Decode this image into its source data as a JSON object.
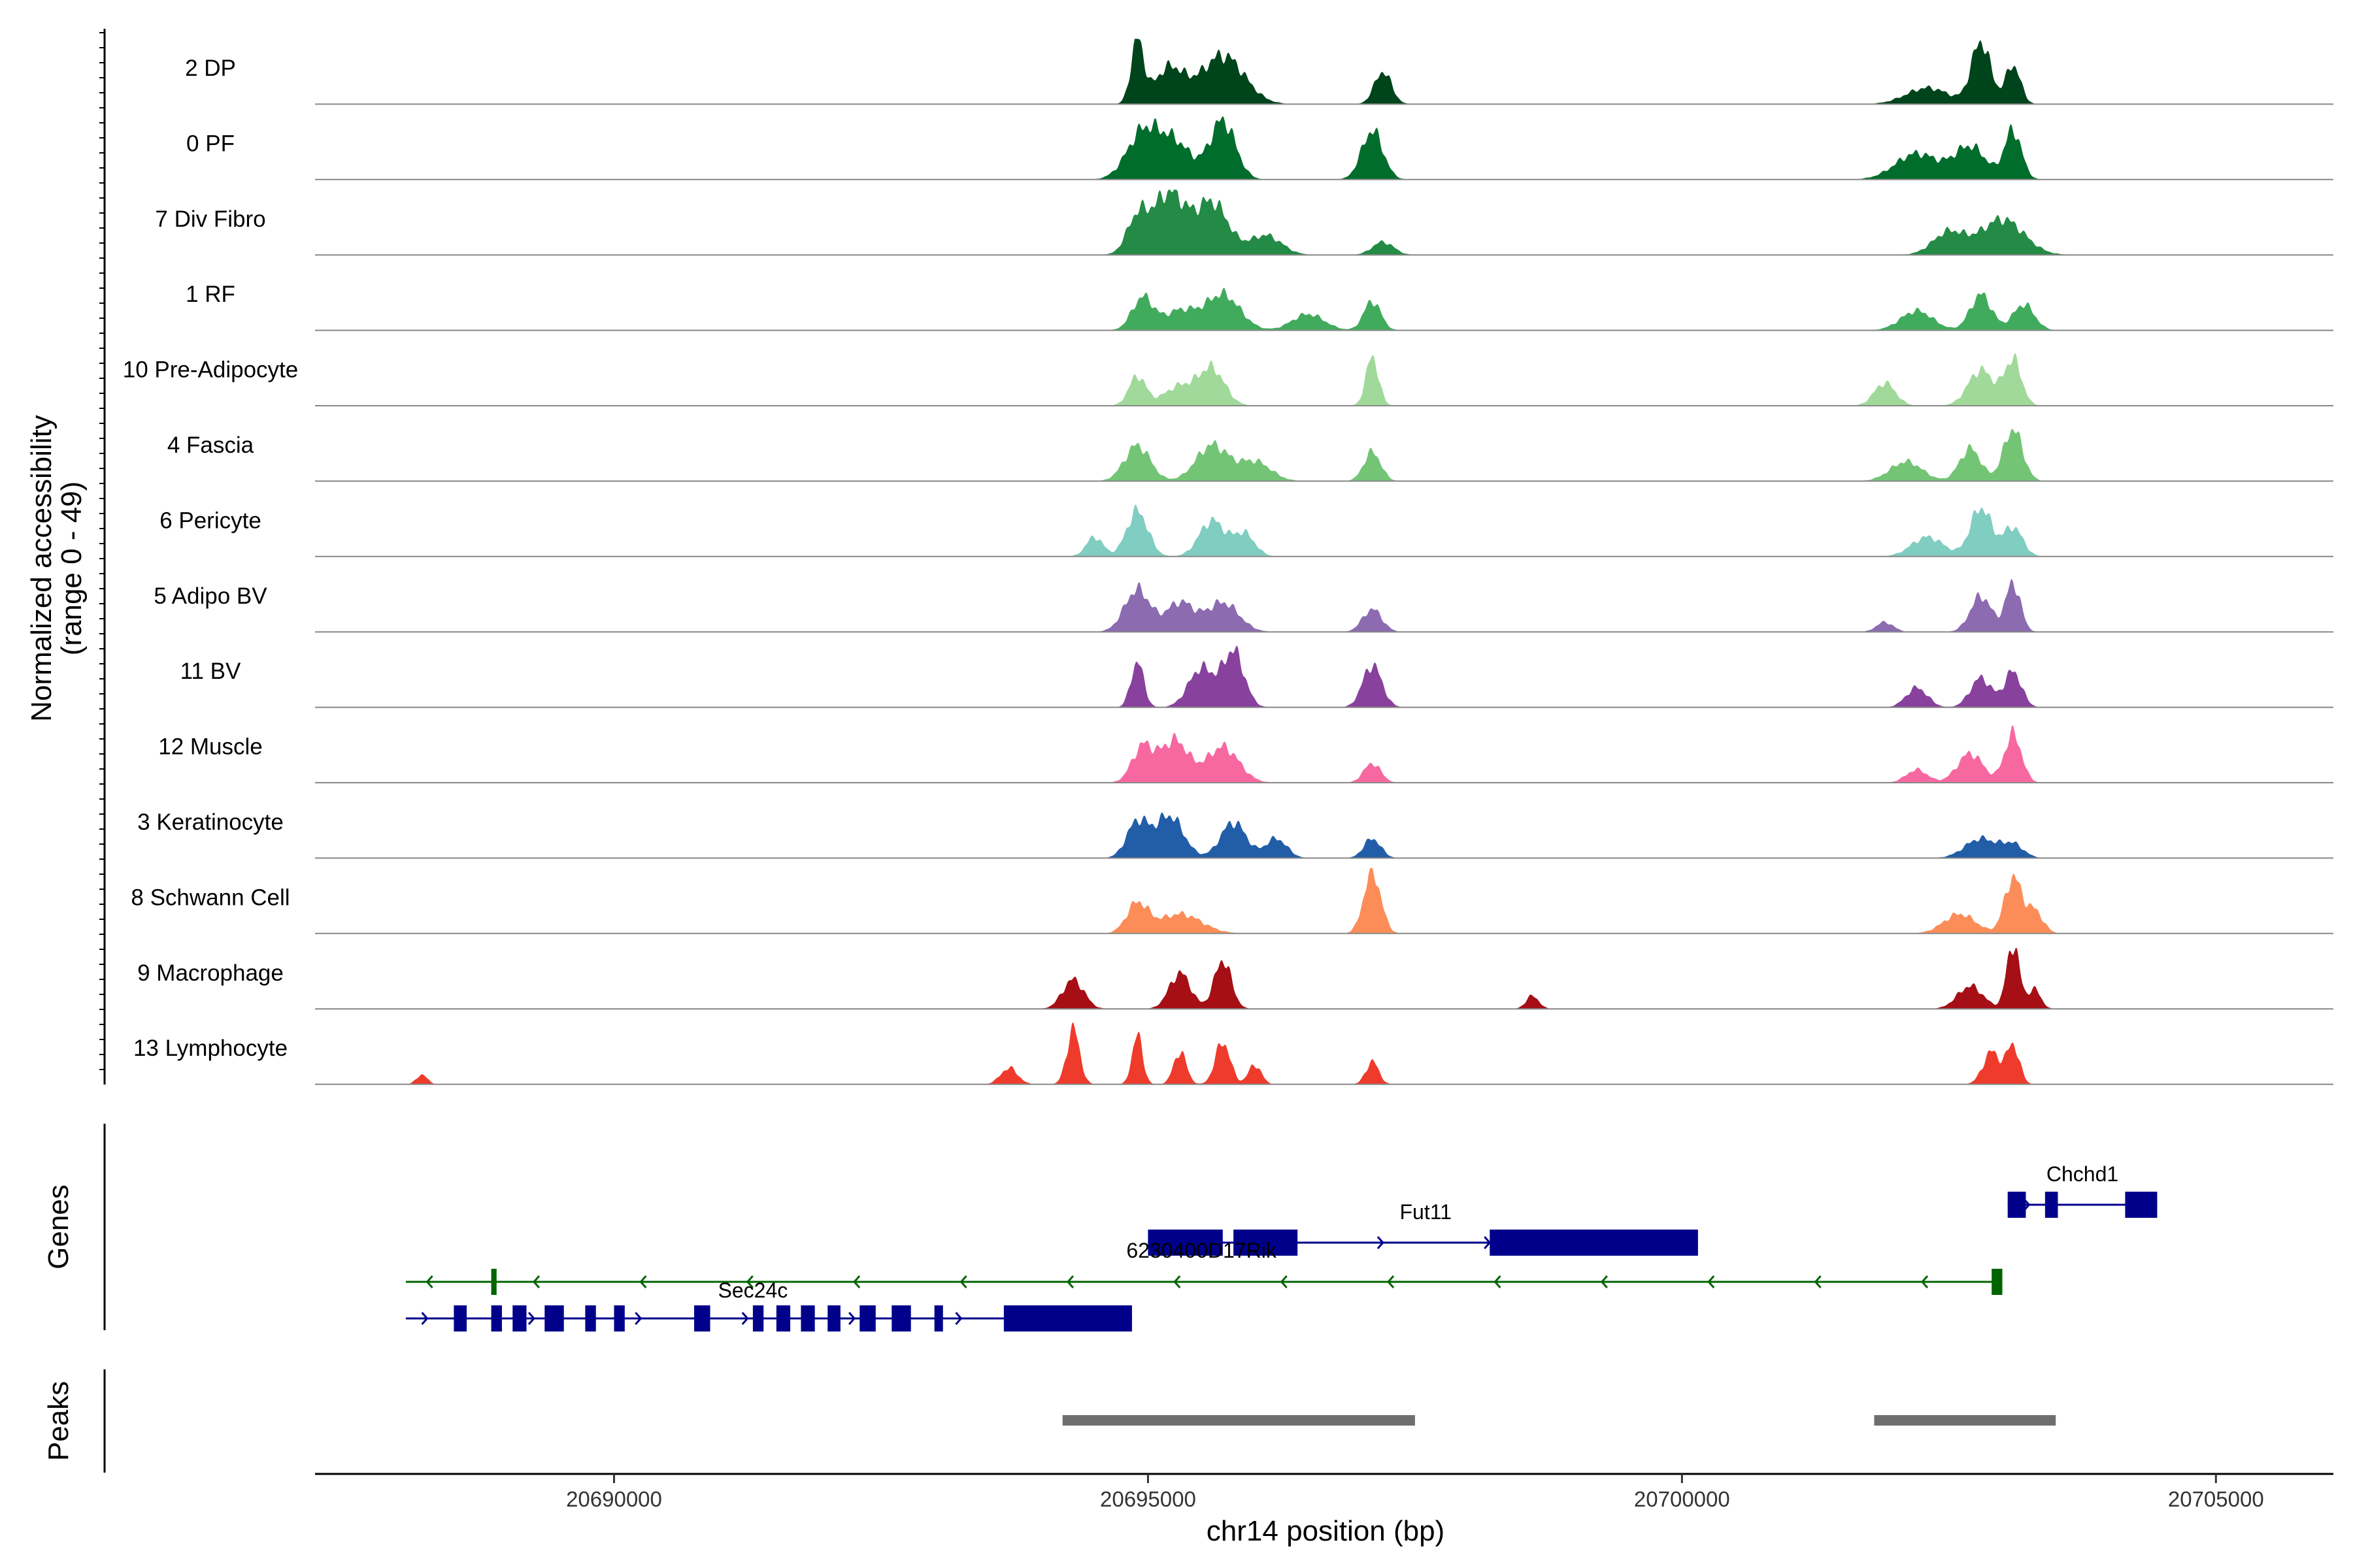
{
  "chart_data": {
    "type": "area",
    "title": "",
    "ylabel": "Normalized accessibility",
    "ylabel_range": "(range 0 - 49)",
    "xlabel": "chr14 position (bp)",
    "xlim": [
      20687200,
      20706100
    ],
    "ylim": [
      0,
      49
    ],
    "x_ticks": [
      {
        "value": 20690000,
        "label": "20690000"
      },
      {
        "value": 20695000,
        "label": "20695000"
      },
      {
        "value": 20700000,
        "label": "20700000"
      },
      {
        "value": 20705000,
        "label": "20705000"
      }
    ],
    "tracks": [
      {
        "name": "2 DP",
        "color": "#00441b",
        "base": 1.0,
        "peaks": [
          [
            20694900,
            0.95,
            60
          ],
          [
            20695200,
            0.55,
            140
          ],
          [
            20695700,
            0.75,
            200
          ],
          [
            20697200,
            0.5,
            80
          ],
          [
            20702800,
            0.95,
            90
          ],
          [
            20703100,
            0.6,
            70
          ],
          [
            20702300,
            0.25,
            200
          ]
        ]
      },
      {
        "name": "0 PF",
        "color": "#006d2c",
        "base": 1.0,
        "peaks": [
          [
            20694950,
            0.7,
            150
          ],
          [
            20695250,
            0.55,
            160
          ],
          [
            20695700,
            0.9,
            120
          ],
          [
            20697100,
            0.75,
            100
          ],
          [
            20702200,
            0.4,
            200
          ],
          [
            20702700,
            0.5,
            150
          ],
          [
            20703100,
            0.75,
            80
          ]
        ]
      },
      {
        "name": "7 Div Fibro",
        "color": "#238b45",
        "base": 1.0,
        "peaks": [
          [
            20694900,
            0.55,
            100
          ],
          [
            20695200,
            0.95,
            150
          ],
          [
            20695600,
            0.8,
            150
          ],
          [
            20696100,
            0.3,
            150
          ],
          [
            20697200,
            0.2,
            100
          ],
          [
            20702500,
            0.35,
            150
          ],
          [
            20703000,
            0.55,
            200
          ]
        ]
      },
      {
        "name": "1 RF",
        "color": "#41ab5d",
        "base": 1.0,
        "peaks": [
          [
            20694950,
            0.5,
            100
          ],
          [
            20695300,
            0.3,
            150
          ],
          [
            20695700,
            0.55,
            160
          ],
          [
            20696500,
            0.25,
            150
          ],
          [
            20697100,
            0.45,
            80
          ],
          [
            20702200,
            0.3,
            150
          ],
          [
            20702800,
            0.55,
            100
          ],
          [
            20703200,
            0.4,
            100
          ]
        ]
      },
      {
        "name": "10 Pre-Adipocyte",
        "color": "#a1d99b",
        "base": 1.0,
        "peaks": [
          [
            20694900,
            0.45,
            80
          ],
          [
            20695600,
            0.55,
            120
          ],
          [
            20697100,
            0.75,
            60
          ],
          [
            20701900,
            0.35,
            100
          ],
          [
            20702800,
            0.55,
            120
          ],
          [
            20703100,
            0.7,
            80
          ],
          [
            20695300,
            0.3,
            150
          ]
        ]
      },
      {
        "name": "4 Fascia",
        "color": "#74c476",
        "base": 1.0,
        "peaks": [
          [
            20694900,
            0.55,
            120
          ],
          [
            20695600,
            0.55,
            150
          ],
          [
            20697100,
            0.45,
            80
          ],
          [
            20702100,
            0.3,
            150
          ],
          [
            20702700,
            0.5,
            100
          ],
          [
            20703100,
            0.8,
            90
          ],
          [
            20696000,
            0.3,
            150
          ]
        ]
      },
      {
        "name": "6 Pericyte",
        "color": "#80cdc1",
        "base": 1.0,
        "peaks": [
          [
            20694500,
            0.3,
            80
          ],
          [
            20694900,
            0.7,
            100
          ],
          [
            20695600,
            0.55,
            120
          ],
          [
            20695900,
            0.35,
            100
          ],
          [
            20702800,
            0.75,
            100
          ],
          [
            20702300,
            0.3,
            150
          ],
          [
            20703100,
            0.45,
            90
          ]
        ]
      },
      {
        "name": "5 Adipo BV",
        "color": "#8c6bb1",
        "base": 1.0,
        "peaks": [
          [
            20694900,
            0.65,
            120
          ],
          [
            20695300,
            0.45,
            130
          ],
          [
            20695700,
            0.45,
            150
          ],
          [
            20697100,
            0.35,
            90
          ],
          [
            20702800,
            0.55,
            100
          ],
          [
            20703100,
            0.75,
            70
          ],
          [
            20701900,
            0.15,
            80
          ]
        ]
      },
      {
        "name": "11 BV",
        "color": "#88419d",
        "base": 1.0,
        "peaks": [
          [
            20694900,
            0.7,
            60
          ],
          [
            20695500,
            0.6,
            120
          ],
          [
            20695800,
            0.85,
            100
          ],
          [
            20697100,
            0.65,
            90
          ],
          [
            20702800,
            0.45,
            100
          ],
          [
            20703100,
            0.55,
            80
          ],
          [
            20702200,
            0.3,
            100
          ]
        ]
      },
      {
        "name": "12 Muscle",
        "color": "#f768a1",
        "base": 1.0,
        "peaks": [
          [
            20694950,
            0.55,
            100
          ],
          [
            20695250,
            0.65,
            130
          ],
          [
            20695700,
            0.55,
            150
          ],
          [
            20697100,
            0.3,
            80
          ],
          [
            20702700,
            0.45,
            120
          ],
          [
            20703100,
            0.75,
            80
          ],
          [
            20702200,
            0.2,
            100
          ]
        ]
      },
      {
        "name": "3 Keratinocyte",
        "color": "#225ea8",
        "base": 1.0,
        "peaks": [
          [
            20694900,
            0.55,
            100
          ],
          [
            20695200,
            0.65,
            130
          ],
          [
            20695800,
            0.55,
            120
          ],
          [
            20696200,
            0.3,
            100
          ],
          [
            20697100,
            0.3,
            80
          ],
          [
            20702800,
            0.3,
            150
          ],
          [
            20703100,
            0.2,
            100
          ]
        ]
      },
      {
        "name": "8 Schwann Cell",
        "color": "#fc8d59",
        "base": 1.0,
        "peaks": [
          [
            20694900,
            0.45,
            100
          ],
          [
            20695300,
            0.3,
            200
          ],
          [
            20697100,
            0.95,
            80
          ],
          [
            20702600,
            0.3,
            150
          ],
          [
            20703100,
            0.85,
            80
          ],
          [
            20703300,
            0.35,
            80
          ]
        ]
      },
      {
        "name": "9 Macrophage",
        "color": "#a50f15",
        "base": 1.0,
        "peaks": [
          [
            20694300,
            0.45,
            100
          ],
          [
            20695300,
            0.55,
            100
          ],
          [
            20695700,
            0.75,
            80
          ],
          [
            20698600,
            0.2,
            60
          ],
          [
            20702700,
            0.35,
            120
          ],
          [
            20703100,
            1.0,
            60
          ],
          [
            20703300,
            0.3,
            60
          ]
        ]
      },
      {
        "name": "13 Lymphocyte",
        "color": "#ef3b2c",
        "base": 1.0,
        "peaks": [
          [
            20694300,
            0.85,
            60
          ],
          [
            20694900,
            0.75,
            50
          ],
          [
            20695300,
            0.5,
            60
          ],
          [
            20695700,
            0.65,
            70
          ],
          [
            20696000,
            0.3,
            60
          ],
          [
            20697100,
            0.35,
            60
          ],
          [
            20688200,
            0.15,
            50
          ],
          [
            20693700,
            0.25,
            80
          ],
          [
            20702900,
            0.5,
            80
          ],
          [
            20703100,
            0.6,
            60
          ]
        ]
      }
    ],
    "genes_label": "Genes",
    "peaks_label": "Peaks",
    "genes": [
      {
        "name": "Chchd1",
        "strand": "+",
        "start": 20703050,
        "end": 20704450,
        "color": "#00008b",
        "row": 0,
        "exons": [
          [
            20703050,
            20703220
          ],
          [
            20703400,
            20703520
          ],
          [
            20704150,
            20704450
          ]
        ]
      },
      {
        "name": "Fut11",
        "strand": "+",
        "start": 20695000,
        "end": 20700150,
        "color": "#00008b",
        "row": 1,
        "exons": [
          [
            20698200,
            20700150
          ]
        ]
      },
      {
        "name": "6230400D17Rik",
        "strand": "+",
        "start": 20695000,
        "end": 20696400,
        "color": "#00008b",
        "row": 1,
        "exons": [
          [
            20695000,
            20695700
          ],
          [
            20695800,
            20696400
          ]
        ]
      },
      {
        "name": "",
        "strand": "-",
        "start": 20688050,
        "end": 20703000,
        "color": "#006400",
        "row": 2,
        "exons": [
          [
            20688850,
            20688900
          ],
          [
            20702900,
            20703000
          ]
        ]
      },
      {
        "name": "Sec24c",
        "strand": "+",
        "start": 20688050,
        "end": 20694850,
        "color": "#00008b",
        "row": 3,
        "exons": [
          [
            20688500,
            20688620
          ],
          [
            20688850,
            20688950
          ],
          [
            20689050,
            20689180
          ],
          [
            20689350,
            20689530
          ],
          [
            20689730,
            20689830
          ],
          [
            20690000,
            20690100
          ],
          [
            20690750,
            20690900
          ],
          [
            20691300,
            20691400
          ],
          [
            20691520,
            20691650
          ],
          [
            20691750,
            20691880
          ],
          [
            20692000,
            20692120
          ],
          [
            20692300,
            20692450
          ],
          [
            20692600,
            20692780
          ],
          [
            20693000,
            20693080
          ],
          [
            20693650,
            20694850
          ]
        ]
      }
    ],
    "peak_regions": [
      [
        20694200,
        20697500
      ],
      [
        20701800,
        20703500
      ]
    ]
  }
}
